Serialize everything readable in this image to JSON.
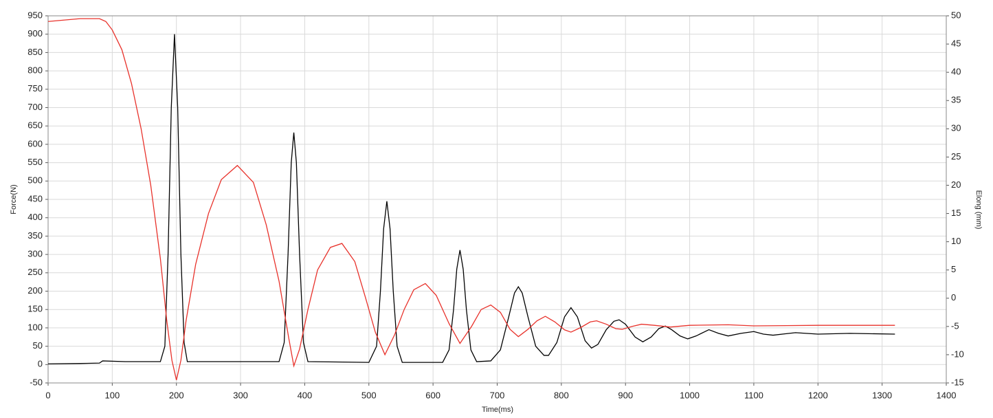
{
  "chart_data": {
    "type": "line",
    "x_label": "Time(ms)",
    "y_label": "Force(N)",
    "y2_label": "Elong (mm)",
    "xlim": [
      0,
      1400
    ],
    "xticks": [
      0,
      100,
      200,
      300,
      400,
      500,
      600,
      700,
      800,
      900,
      1000,
      1100,
      1200,
      1300,
      1400
    ],
    "ylim": [
      -50,
      950
    ],
    "yticks": [
      -50,
      0,
      50,
      100,
      150,
      200,
      250,
      300,
      350,
      400,
      450,
      500,
      550,
      600,
      650,
      700,
      750,
      800,
      850,
      900,
      950
    ],
    "y2lim": [
      -15,
      50
    ],
    "y2ticks": [
      -15,
      -10,
      -5,
      0,
      5,
      10,
      15,
      20,
      25,
      30,
      35,
      40,
      45,
      50
    ],
    "grid": true,
    "series": [
      {
        "color": "#000000",
        "x": [
          0,
          50,
          80,
          85,
          120,
          175,
          182,
          187,
          192,
          197,
          202,
          207,
          212,
          217,
          300,
          360,
          368,
          374,
          379,
          383,
          387,
          392,
          398,
          405,
          500,
          512,
          518,
          523,
          528,
          533,
          538,
          544,
          552,
          615,
          625,
          632,
          637,
          642,
          647,
          652,
          659,
          668,
          690,
          705,
          718,
          727,
          733,
          739,
          748,
          760,
          773,
          780,
          793,
          805,
          815,
          825,
          837,
          847,
          857,
          870,
          882,
          890,
          900,
          915,
          927,
          940,
          952,
          962,
          972,
          985,
          997,
          1010,
          1030,
          1045,
          1060,
          1080,
          1100,
          1115,
          1130,
          1165,
          1200,
          1250,
          1320
        ],
        "values": [
          2,
          3,
          4,
          10,
          8,
          8,
          50,
          300,
          700,
          900,
          700,
          300,
          60,
          8,
          8,
          8,
          60,
          300,
          550,
          632,
          550,
          300,
          60,
          8,
          6,
          50,
          200,
          370,
          445,
          370,
          200,
          50,
          6,
          6,
          40,
          150,
          260,
          312,
          260,
          150,
          40,
          8,
          10,
          40,
          130,
          195,
          212,
          195,
          130,
          50,
          25,
          25,
          60,
          130,
          155,
          130,
          65,
          45,
          55,
          95,
          118,
          122,
          110,
          75,
          62,
          75,
          98,
          105,
          95,
          78,
          70,
          78,
          95,
          85,
          78,
          85,
          90,
          83,
          80,
          87,
          83,
          85,
          83
        ]
      },
      {
        "color": "#e8312a",
        "axis": "y2",
        "x": [
          0,
          50,
          80,
          90,
          100,
          115,
          130,
          145,
          160,
          175,
          185,
          193,
          200,
          207,
          215,
          230,
          250,
          270,
          295,
          320,
          340,
          360,
          375,
          383,
          392,
          405,
          420,
          440,
          458,
          478,
          495,
          510,
          525,
          540,
          555,
          570,
          588,
          605,
          625,
          642,
          660,
          675,
          690,
          705,
          720,
          733,
          748,
          762,
          775,
          790,
          805,
          815,
          830,
          845,
          855,
          870,
          885,
          895,
          910,
          925,
          945,
          970,
          1000,
          1060,
          1100,
          1200,
          1320
        ],
        "values": [
          49,
          49.5,
          49.5,
          49,
          47.5,
          44,
          38,
          30,
          20,
          7,
          -4,
          -11,
          -14.5,
          -11,
          -4,
          6,
          15,
          21,
          23.5,
          20.5,
          13,
          3,
          -7,
          -12,
          -9,
          -2,
          5,
          9,
          9.7,
          6.5,
          0,
          -6,
          -10,
          -6.5,
          -2,
          1.5,
          2.6,
          0.5,
          -4.5,
          -8,
          -5,
          -2,
          -1.2,
          -2.5,
          -5.5,
          -6.8,
          -5.5,
          -4,
          -3.2,
          -4.2,
          -5.6,
          -6,
          -5.2,
          -4.2,
          -4,
          -4.6,
          -5.4,
          -5.5,
          -5,
          -4.6,
          -4.8,
          -5.1,
          -4.8,
          -4.7,
          -4.9,
          -4.8,
          -4.8
        ]
      }
    ]
  }
}
